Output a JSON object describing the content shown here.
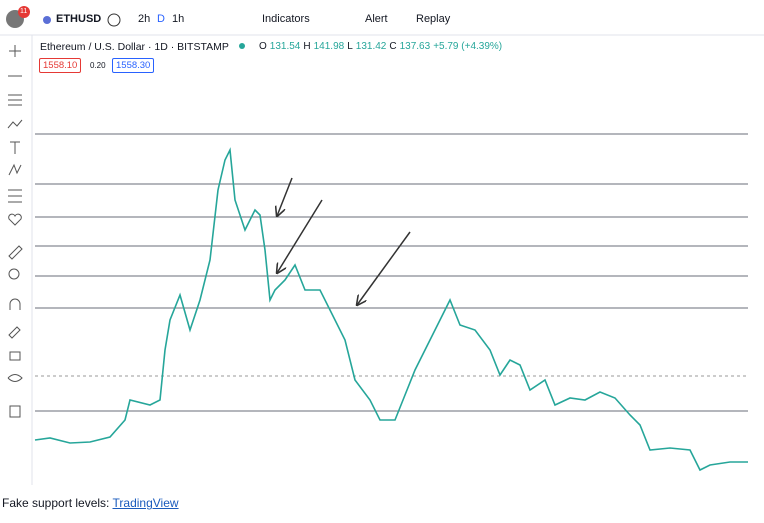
{
  "toolbar": {
    "avatar_badge": "11",
    "symbol": "ETHUSD",
    "intervals": [
      "2h",
      "D",
      "1h"
    ],
    "buttons": [
      "Indicators",
      "Alert",
      "Replay"
    ]
  },
  "legend": {
    "title": "Ethereum / U.S. Dollar · 1D · BITSTAMP",
    "ohlc": [
      {
        "label": "O",
        "value": "131.54"
      },
      {
        "label": "H",
        "value": "141.98"
      },
      {
        "label": "L",
        "value": "131.42"
      },
      {
        "label": "C",
        "value": "137.63"
      }
    ],
    "change": "+5.79 (+4.39%)"
  },
  "order": {
    "sell": "1558.10",
    "spread": "0.20",
    "buy": "1558.30"
  },
  "caption": {
    "text": "Fake support levels:",
    "link": "TradingView"
  }
}
